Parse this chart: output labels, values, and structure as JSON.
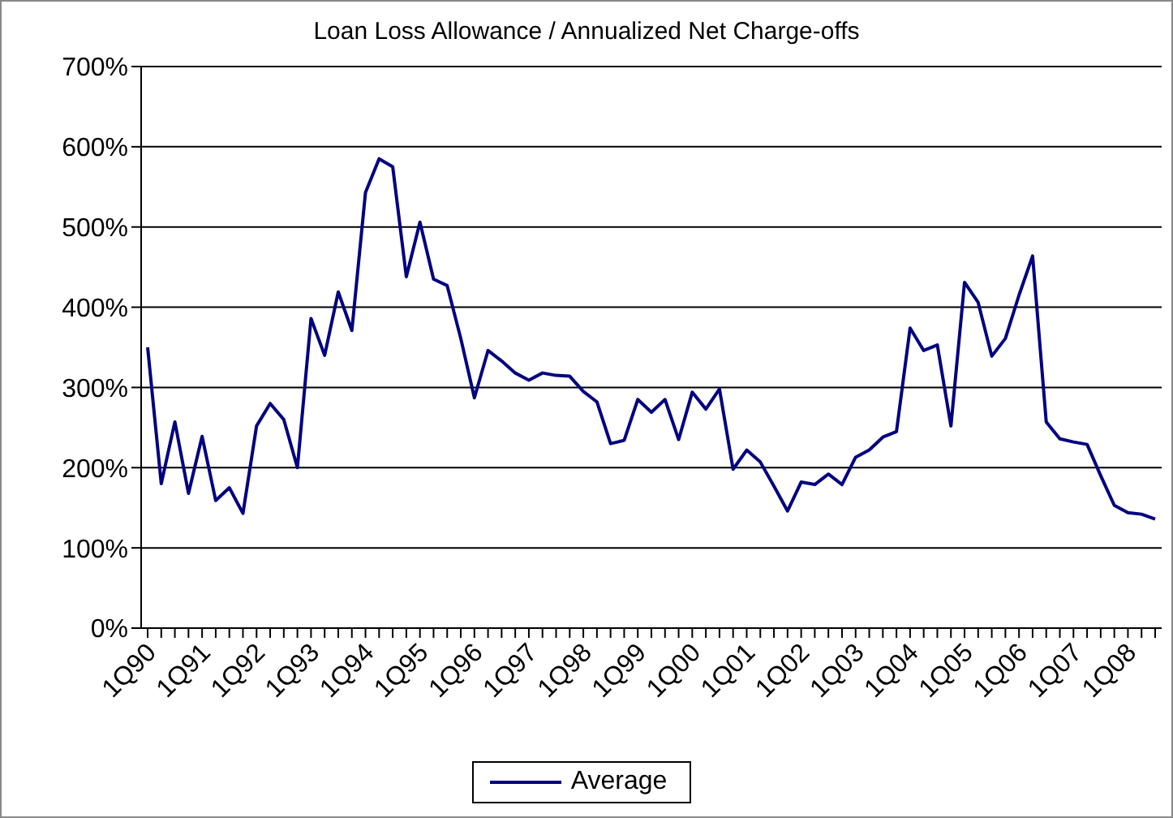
{
  "chart_data": {
    "type": "line",
    "title": "Loan Loss Allowance / Annualized Net Charge-offs",
    "categories": [
      "1Q90",
      null,
      null,
      null,
      "1Q91",
      null,
      null,
      null,
      "1Q92",
      null,
      null,
      null,
      "1Q93",
      null,
      null,
      null,
      "1Q94",
      null,
      null,
      null,
      "1Q95",
      null,
      null,
      null,
      "1Q96",
      null,
      null,
      null,
      "1Q97",
      null,
      null,
      null,
      "1Q98",
      null,
      null,
      null,
      "1Q99",
      null,
      null,
      null,
      "1Q00",
      null,
      null,
      null,
      "1Q01",
      null,
      null,
      null,
      "1Q02",
      null,
      null,
      null,
      "1Q03",
      null,
      null,
      null,
      "1Q04",
      null,
      null,
      null,
      "1Q05",
      null,
      null,
      null,
      "1Q06",
      null,
      null,
      null,
      "1Q07",
      null,
      null,
      null,
      "1Q08",
      null,
      null
    ],
    "series": [
      {
        "name": "Average",
        "color": "#000080",
        "values": [
          350,
          180,
          257,
          168,
          239,
          159,
          175,
          143,
          252,
          280,
          260,
          200,
          386,
          340,
          419,
          371,
          543,
          585,
          575,
          438,
          506,
          435,
          427,
          361,
          287,
          346,
          333,
          318,
          309,
          318,
          315,
          314,
          295,
          282,
          230,
          234,
          285,
          269,
          285,
          235,
          294,
          273,
          298,
          198,
          222,
          207,
          177,
          146,
          182,
          179,
          192,
          179,
          213,
          222,
          238,
          245,
          374,
          346,
          353,
          252,
          431,
          406,
          339,
          361,
          415,
          464,
          257,
          236,
          232,
          229,
          190,
          153,
          144,
          142,
          136
        ]
      }
    ],
    "ylim": [
      0,
      700
    ],
    "yticks": [
      {
        "value": 0,
        "label": "0%"
      },
      {
        "value": 100,
        "label": "100%"
      },
      {
        "value": 200,
        "label": "200%"
      },
      {
        "value": 300,
        "label": "300%"
      },
      {
        "value": 400,
        "label": "400%"
      },
      {
        "value": 500,
        "label": "500%"
      },
      {
        "value": 600,
        "label": "600%"
      },
      {
        "value": 700,
        "label": "700%"
      }
    ],
    "grid": "y",
    "legend": "bottom",
    "marker": "none",
    "line_style": "solid"
  }
}
